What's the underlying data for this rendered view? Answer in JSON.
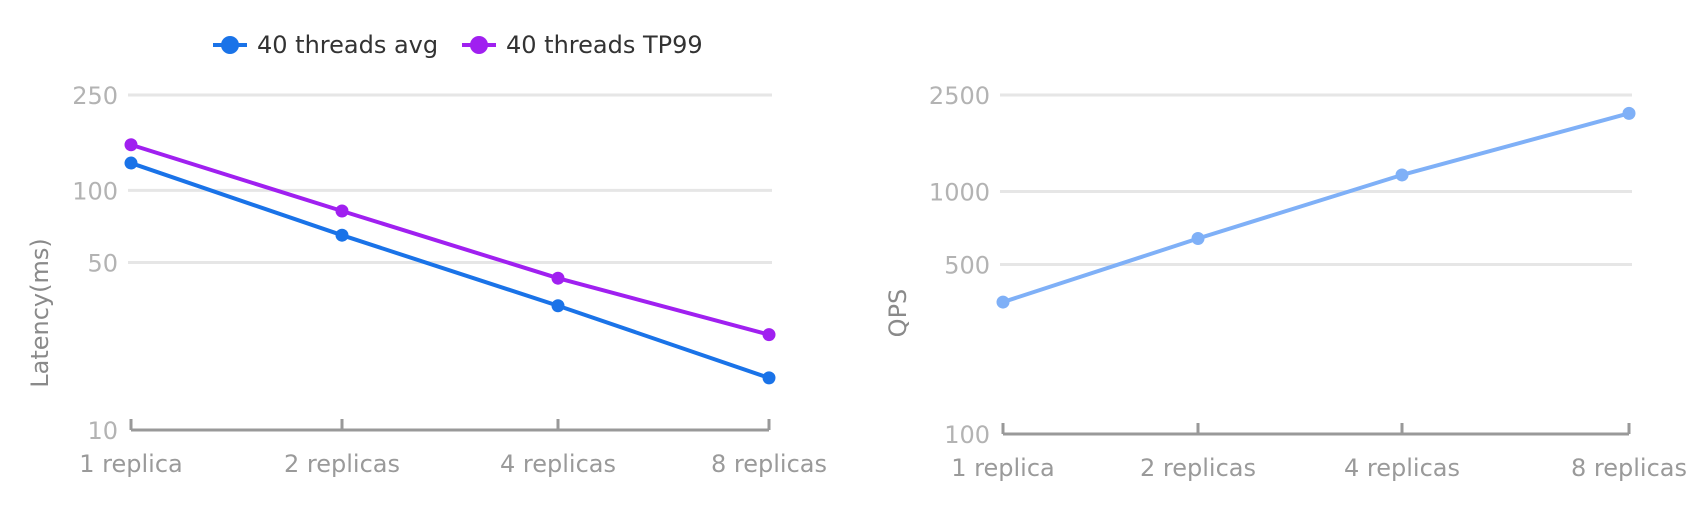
{
  "chart_data": [
    {
      "type": "line",
      "scale": "log",
      "categories": [
        "1 replica",
        "2 replicas",
        "4 replicas",
        "8 replicas"
      ],
      "ylabel": "Latency(ms)",
      "yticks": [
        10,
        50,
        100,
        250
      ],
      "ylim": [
        10,
        250
      ],
      "grid": true,
      "legend": "top",
      "series": [
        {
          "name": "40 threads avg",
          "color": "#1a73e8",
          "values": [
            130,
            65,
            33,
            16.5
          ]
        },
        {
          "name": "40 threads TP99",
          "color": "#a020f0",
          "values": [
            155,
            82,
            43,
            25
          ]
        }
      ]
    },
    {
      "type": "line",
      "scale": "log",
      "categories": [
        "1 replica",
        "2 replicas",
        "4 replicas",
        "8 replicas"
      ],
      "ylabel": "QPS",
      "yticks": [
        100,
        500,
        1000,
        2500
      ],
      "ylim": [
        100,
        2500
      ],
      "grid": true,
      "series": [
        {
          "color": "#7fb0f7",
          "values": [
            350,
            640,
            1170,
            2100
          ]
        }
      ]
    }
  ]
}
